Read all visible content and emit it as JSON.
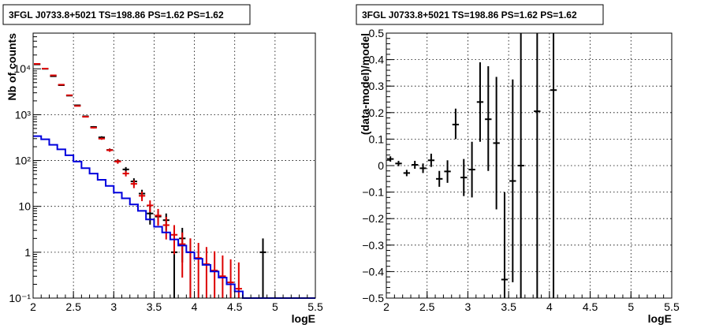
{
  "chart_data": [
    {
      "type": "step-histogram-with-errorbars",
      "title": "3FGL J0733.8+5021 TS=198.86 PS=1.62 PS=1.62",
      "xlabel": "logE",
      "ylabel": "Nb of counts",
      "xlim": [
        2,
        5.5
      ],
      "ylim": [
        0.1,
        60000
      ],
      "yscale": "log",
      "grid": true,
      "x_ticks": [
        "2",
        "2.5",
        "3",
        "3.5",
        "4",
        "4.5",
        "5",
        "5.5"
      ],
      "y_ticks": [
        "10⁻¹",
        "1",
        "10",
        "10²",
        "10³",
        "10⁴"
      ],
      "y_tick_values": [
        0.1,
        1,
        10,
        100,
        1000,
        10000
      ],
      "bin_width": 0.1,
      "series": [
        {
          "color": "#000000",
          "points": [
            {
              "x": 2.05,
              "y": 12500,
              "lo": 12400,
              "hi": 12600
            },
            {
              "x": 2.15,
              "y": 10000,
              "lo": 9900,
              "hi": 10100
            },
            {
              "x": 2.25,
              "y": 6900,
              "lo": 6800,
              "hi": 7000
            },
            {
              "x": 2.35,
              "y": 4400,
              "lo": 4330,
              "hi": 4470
            },
            {
              "x": 2.45,
              "y": 2600,
              "lo": 2550,
              "hi": 2650
            },
            {
              "x": 2.55,
              "y": 1600,
              "lo": 1560,
              "hi": 1640
            },
            {
              "x": 2.65,
              "y": 920,
              "lo": 890,
              "hi": 950
            },
            {
              "x": 2.75,
              "y": 540,
              "lo": 517,
              "hi": 563
            },
            {
              "x": 2.85,
              "y": 320,
              "lo": 302,
              "hi": 338
            },
            {
              "x": 2.95,
              "y": 170,
              "lo": 157,
              "hi": 183
            },
            {
              "x": 3.05,
              "y": 97,
              "lo": 87,
              "hi": 107
            },
            {
              "x": 3.15,
              "y": 64,
              "lo": 56,
              "hi": 72
            },
            {
              "x": 3.25,
              "y": 35,
              "lo": 29,
              "hi": 41
            },
            {
              "x": 3.35,
              "y": 19,
              "lo": 15,
              "hi": 23
            },
            {
              "x": 3.45,
              "y": 7,
              "lo": 4,
              "hi": 10
            },
            {
              "x": 3.55,
              "y": 6,
              "lo": 4,
              "hi": 8
            },
            {
              "x": 3.65,
              "y": 5,
              "lo": 3,
              "hi": 7
            },
            {
              "x": 3.75,
              "y": 1,
              "lo": 0.1,
              "hi": 2
            },
            {
              "x": 3.85,
              "y": 2,
              "lo": 0.6,
              "hi": 3.4
            },
            {
              "x": 3.95,
              "y": 1,
              "lo": 0.1,
              "hi": 2
            },
            {
              "x": 4.85,
              "y": 1,
              "lo": 0.1,
              "hi": 2
            }
          ]
        },
        {
          "color": "#dd0000",
          "points": [
            {
              "x": 2.05,
              "y": 12800,
              "lo": 12700,
              "hi": 12900
            },
            {
              "x": 2.15,
              "y": 10100,
              "lo": 10000,
              "hi": 10200
            },
            {
              "x": 2.25,
              "y": 7200,
              "lo": 7100,
              "hi": 7300
            },
            {
              "x": 2.35,
              "y": 4500,
              "lo": 4430,
              "hi": 4570
            },
            {
              "x": 2.45,
              "y": 2650,
              "lo": 2600,
              "hi": 2700
            },
            {
              "x": 2.55,
              "y": 1550,
              "lo": 1510,
              "hi": 1590
            },
            {
              "x": 2.65,
              "y": 900,
              "lo": 870,
              "hi": 930
            },
            {
              "x": 2.75,
              "y": 520,
              "lo": 498,
              "hi": 542
            },
            {
              "x": 2.85,
              "y": 300,
              "lo": 283,
              "hi": 317
            },
            {
              "x": 2.95,
              "y": 168,
              "lo": 155,
              "hi": 181
            },
            {
              "x": 3.05,
              "y": 95,
              "lo": 85,
              "hi": 105
            },
            {
              "x": 3.15,
              "y": 52,
              "lo": 45,
              "hi": 59
            },
            {
              "x": 3.25,
              "y": 31,
              "lo": 25,
              "hi": 37
            },
            {
              "x": 3.35,
              "y": 17,
              "lo": 13,
              "hi": 21
            },
            {
              "x": 3.45,
              "y": 10.5,
              "lo": 7.5,
              "hi": 13.5
            },
            {
              "x": 3.55,
              "y": 6.3,
              "lo": 3.8,
              "hi": 8.8
            },
            {
              "x": 3.65,
              "y": 3.9,
              "lo": 1.9,
              "hi": 5.9
            },
            {
              "x": 3.75,
              "y": 2.4,
              "lo": 0.9,
              "hi": 3.9
            },
            {
              "x": 3.85,
              "y": 1.5,
              "lo": 0.28,
              "hi": 2.7
            },
            {
              "x": 3.95,
              "y": 1.0,
              "lo": 0.1,
              "hi": 2.0
            },
            {
              "x": 4.05,
              "y": 0.75,
              "lo": 0.1,
              "hi": 1.6
            },
            {
              "x": 4.15,
              "y": 0.55,
              "lo": 0.1,
              "hi": 1.3
            },
            {
              "x": 4.25,
              "y": 0.4,
              "lo": 0.1,
              "hi": 1.05
            },
            {
              "x": 4.35,
              "y": 0.3,
              "lo": 0.1,
              "hi": 0.85
            },
            {
              "x": 4.45,
              "y": 0.22,
              "lo": 0.1,
              "hi": 0.7
            },
            {
              "x": 4.55,
              "y": 0.16,
              "lo": 0.1,
              "hi": 0.6
            }
          ]
        },
        {
          "color": "#0000dd",
          "style": "step",
          "x_edges": [
            2.0,
            2.1,
            2.2,
            2.3,
            2.4,
            2.5,
            2.6,
            2.7,
            2.8,
            2.9,
            3.0,
            3.1,
            3.2,
            3.3,
            3.4,
            3.5,
            3.6,
            3.7,
            3.8,
            3.9,
            4.0,
            4.1,
            4.2,
            4.3,
            4.4,
            4.5,
            4.6,
            5.5
          ],
          "values": [
            340,
            290,
            220,
            175,
            130,
            95,
            68,
            52,
            38,
            28,
            20,
            15,
            11,
            8,
            5.2,
            3.6,
            2.7,
            1.9,
            1.4,
            1.0,
            0.72,
            0.53,
            0.38,
            0.28,
            0.2,
            0.14,
            0.1
          ]
        }
      ]
    },
    {
      "type": "residuals-errorbars",
      "title": "3FGL J0733.8+5021 TS=198.86 PS=1.62 PS=1.62",
      "xlabel": "logE",
      "ylabel": "(data-model)/model",
      "xlim": [
        2,
        5.5
      ],
      "ylim": [
        -0.5,
        0.5
      ],
      "grid": true,
      "x_ticks": [
        "2",
        "2.5",
        "3",
        "3.5",
        "4",
        "4.5",
        "5",
        "5.5"
      ],
      "y_ticks": [
        "−0.5",
        "−0.4",
        "−0.3",
        "−0.2",
        "−0.1",
        "0",
        "0.1",
        "0.2",
        "0.3",
        "0.4",
        "0.5"
      ],
      "y_tick_values": [
        -0.5,
        -0.4,
        -0.3,
        -0.2,
        -0.1,
        0,
        0.1,
        0.2,
        0.3,
        0.4,
        0.5
      ],
      "bin_width": 0.1,
      "points": [
        {
          "x": 2.05,
          "y": 0.025,
          "lo": 0.015,
          "hi": 0.035
        },
        {
          "x": 2.15,
          "y": 0.008,
          "lo": -0.002,
          "hi": 0.018
        },
        {
          "x": 2.25,
          "y": -0.028,
          "lo": -0.04,
          "hi": -0.016
        },
        {
          "x": 2.35,
          "y": 0.003,
          "lo": -0.012,
          "hi": 0.018
        },
        {
          "x": 2.45,
          "y": -0.01,
          "lo": -0.028,
          "hi": 0.008
        },
        {
          "x": 2.55,
          "y": 0.02,
          "lo": -0.005,
          "hi": 0.045
        },
        {
          "x": 2.65,
          "y": -0.05,
          "lo": -0.08,
          "hi": -0.02
        },
        {
          "x": 2.75,
          "y": -0.022,
          "lo": -0.065,
          "hi": 0.02
        },
        {
          "x": 2.85,
          "y": 0.155,
          "lo": 0.1,
          "hi": 0.215
        },
        {
          "x": 2.95,
          "y": -0.045,
          "lo": -0.115,
          "hi": 0.025
        },
        {
          "x": 3.05,
          "y": -0.015,
          "lo": -0.12,
          "hi": 0.09
        },
        {
          "x": 3.15,
          "y": 0.24,
          "lo": 0.09,
          "hi": 0.39
        },
        {
          "x": 3.25,
          "y": 0.175,
          "lo": -0.02,
          "hi": 0.375
        },
        {
          "x": 3.35,
          "y": 0.085,
          "lo": -0.165,
          "hi": 0.335
        },
        {
          "x": 3.45,
          "y": -0.43,
          "lo": -0.75,
          "hi": -0.1
        },
        {
          "x": 3.55,
          "y": -0.058,
          "lo": -0.44,
          "hi": 0.325
        },
        {
          "x": 3.65,
          "y": 0.0,
          "lo": -0.6,
          "hi": 0.6
        },
        {
          "x": 3.85,
          "y": 0.205,
          "lo": -0.6,
          "hi": 0.6
        },
        {
          "x": 4.05,
          "y": 0.285,
          "lo": -0.6,
          "hi": 0.6
        }
      ]
    }
  ]
}
